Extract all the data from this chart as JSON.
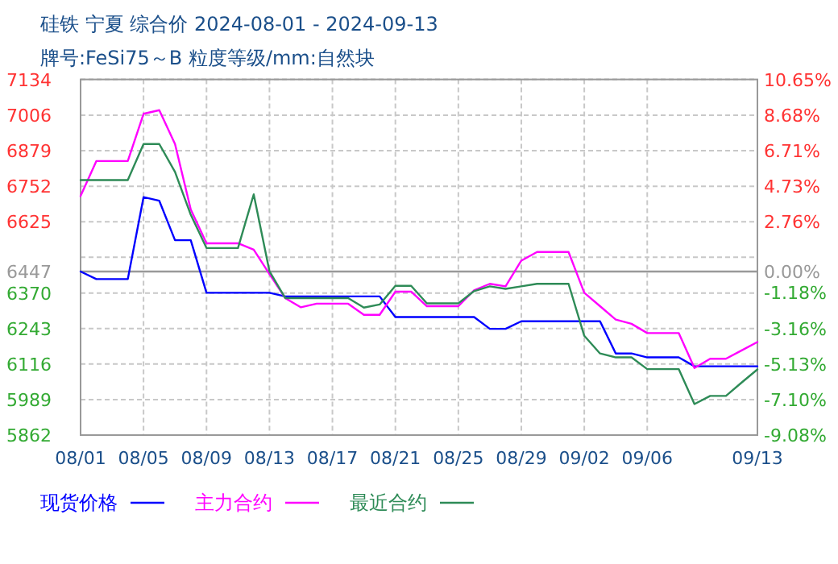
{
  "chart_data": {
    "type": "line",
    "title": "硅铁 宁夏 综合价 2024-08-01 - 2024-09-13",
    "subtitle": "牌号:FeSi75～B 粒度等级/mm:自然块",
    "xlim": [
      "2024-08-01",
      "2024-09-13"
    ],
    "xticks": [
      {
        "value": "2024-08-01",
        "label": "08/01"
      },
      {
        "value": "2024-08-05",
        "label": "08/05"
      },
      {
        "value": "2024-08-09",
        "label": "08/09"
      },
      {
        "value": "2024-08-13",
        "label": "08/13"
      },
      {
        "value": "2024-08-17",
        "label": "08/17"
      },
      {
        "value": "2024-08-21",
        "label": "08/21"
      },
      {
        "value": "2024-08-25",
        "label": "08/25"
      },
      {
        "value": "2024-08-29",
        "label": "08/29"
      },
      {
        "value": "2024-09-02",
        "label": "09/02"
      },
      {
        "value": "2024-09-06",
        "label": "09/06"
      },
      {
        "value": "2024-09-13",
        "label": "09/13"
      }
    ],
    "ylim": [
      5862,
      7134
    ],
    "yticks": [
      7134,
      7006,
      6879,
      6752,
      6625,
      {
        "value": 6498,
        "label": null
      },
      6370,
      6243,
      6116,
      5989,
      5862
    ],
    "y2lim": [
      -9.08,
      10.65
    ],
    "y2ticks": [
      {
        "value": 10.65,
        "label": "10.65%"
      },
      {
        "value": 8.68,
        "label": "8.68%"
      },
      {
        "value": 6.71,
        "label": "6.71%"
      },
      {
        "value": 4.73,
        "label": "4.73%"
      },
      {
        "value": 2.76,
        "label": "2.76%"
      },
      {
        "value": 0,
        "label": "0.00%"
      },
      {
        "value": -1.18,
        "label": "-1.18%"
      },
      {
        "value": -3.16,
        "label": "-3.16%"
      },
      {
        "value": -5.13,
        "label": "-5.13%"
      },
      {
        "value": -7.1,
        "label": "-7.10%"
      },
      {
        "value": -9.08,
        "label": "-9.08%"
      }
    ],
    "ref_lines": [
      {
        "axis": "y",
        "value": 6447,
        "label": "6447",
        "color": "#999999"
      }
    ],
    "grid": true,
    "legend": "bottom",
    "marker": "none",
    "line_style": "solid",
    "series": [
      {
        "name": "现货价格",
        "color": "#0000ff",
        "x": [
          "2024-08-01",
          "2024-08-02",
          "2024-08-04",
          "2024-08-05",
          "2024-08-06",
          "2024-08-07",
          "2024-08-08",
          "2024-08-09",
          "2024-08-13",
          "2024-08-14",
          "2024-08-20",
          "2024-08-21",
          "2024-08-26",
          "2024-08-27",
          "2024-08-28",
          "2024-08-29",
          "2024-09-03",
          "2024-09-04",
          "2024-09-05",
          "2024-09-06",
          "2024-09-08",
          "2024-09-09",
          "2024-09-13"
        ],
        "values": [
          6447,
          6420,
          6420,
          6713,
          6700,
          6559,
          6559,
          6371,
          6371,
          6358,
          6358,
          6284,
          6284,
          6242,
          6242,
          6269,
          6269,
          6154,
          6154,
          6140,
          6140,
          6108,
          6108
        ]
      },
      {
        "name": "主力合约",
        "color": "#ff00ff",
        "x": [
          "2024-08-01",
          "2024-08-02",
          "2024-08-04",
          "2024-08-05",
          "2024-08-06",
          "2024-08-07",
          "2024-08-08",
          "2024-08-09",
          "2024-08-11",
          "2024-08-12",
          "2024-08-13",
          "2024-08-14",
          "2024-08-15",
          "2024-08-16",
          "2024-08-18",
          "2024-08-19",
          "2024-08-20",
          "2024-08-21",
          "2024-08-22",
          "2024-08-23",
          "2024-08-25",
          "2024-08-26",
          "2024-08-27",
          "2024-08-28",
          "2024-08-29",
          "2024-08-30",
          "2024-09-01",
          "2024-09-02",
          "2024-09-03",
          "2024-09-04",
          "2024-09-05",
          "2024-09-06",
          "2024-09-08",
          "2024-09-09",
          "2024-09-10",
          "2024-09-11",
          "2024-09-12",
          "2024-09-13"
        ],
        "values": [
          6717,
          6842,
          6842,
          7011,
          7024,
          6903,
          6669,
          6548,
          6548,
          6525,
          6438,
          6352,
          6319,
          6332,
          6332,
          6292,
          6292,
          6375,
          6375,
          6323,
          6323,
          6380,
          6403,
          6394,
          6486,
          6517,
          6517,
          6371,
          6323,
          6275,
          6260,
          6227,
          6227,
          6102,
          6135,
          6135,
          6165,
          6195
        ]
      },
      {
        "name": "最近合约",
        "color": "#2e8b57",
        "x": [
          "2024-08-01",
          "2024-08-04",
          "2024-08-05",
          "2024-08-06",
          "2024-08-07",
          "2024-08-08",
          "2024-08-09",
          "2024-08-11",
          "2024-08-12",
          "2024-08-13",
          "2024-08-14",
          "2024-08-18",
          "2024-08-19",
          "2024-08-20",
          "2024-08-21",
          "2024-08-22",
          "2024-08-23",
          "2024-08-25",
          "2024-08-26",
          "2024-08-27",
          "2024-08-28",
          "2024-08-29",
          "2024-08-30",
          "2024-09-01",
          "2024-09-02",
          "2024-09-03",
          "2024-09-04",
          "2024-09-05",
          "2024-09-06",
          "2024-09-08",
          "2024-09-09",
          "2024-09-10",
          "2024-09-11",
          "2024-09-12",
          "2024-09-13"
        ],
        "values": [
          6774,
          6774,
          6903,
          6903,
          6803,
          6650,
          6531,
          6531,
          6723,
          6448,
          6352,
          6352,
          6318,
          6329,
          6396,
          6396,
          6333,
          6333,
          6377,
          6394,
          6385,
          6394,
          6403,
          6403,
          6217,
          6154,
          6140,
          6140,
          6098,
          6098,
          5973,
          6002,
          6002,
          6050,
          6097
        ]
      }
    ]
  }
}
